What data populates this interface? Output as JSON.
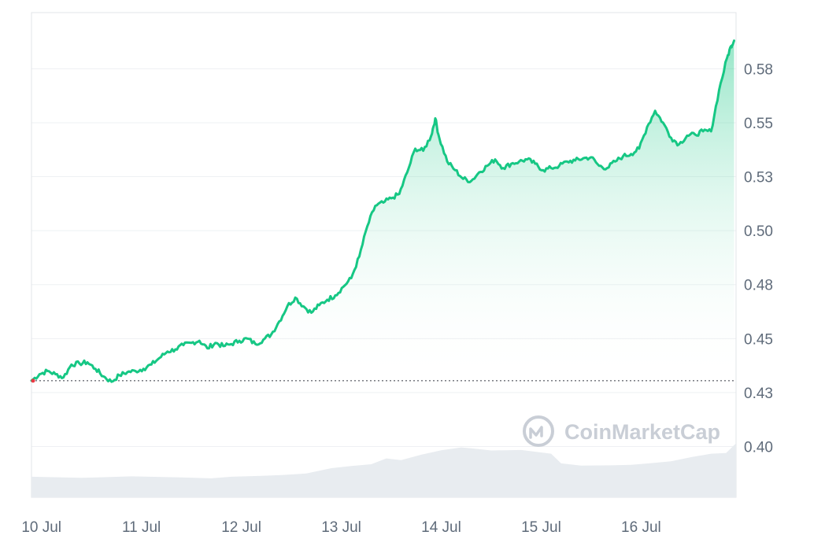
{
  "watermark": {
    "text": "CoinMarketCap",
    "icon": "coinmarketcap-logo-icon"
  },
  "colors": {
    "price_line": "#16c784",
    "area_top": "#16c784",
    "area_bottom": "#ffffff",
    "volume": "#e8ecf0",
    "grid": "#eef0f3",
    "frame": "#e1e4e8",
    "baseline": "#6b6f75",
    "open_marker": "#ea3943",
    "tick_text": "#5f6b7a",
    "watermark": "#c9ced6"
  },
  "chart_data": {
    "type": "area",
    "title": "",
    "xlabel": "",
    "ylabel": "",
    "y_axis_position": "right",
    "y_ticks": [
      "0.40",
      "0.43",
      "0.45",
      "0.48",
      "0.50",
      "0.53",
      "0.55",
      "0.58"
    ],
    "y_tick_values": [
      0.4,
      0.425,
      0.45,
      0.475,
      0.5,
      0.525,
      0.55,
      0.575
    ],
    "ylim": [
      0.3765,
      0.601
    ],
    "x_ticks": [
      "10 Jul",
      "11 Jul",
      "12 Jul",
      "13 Jul",
      "14 Jul",
      "15 Jul",
      "16 Jul"
    ],
    "x_tick_values": [
      0.1,
      1.1,
      2.1,
      3.1,
      4.1,
      5.1,
      6.1
    ],
    "xlim": [
      0,
      7.05
    ],
    "grid": true,
    "open_price_reference": 0.4305,
    "series": [
      {
        "kind": "price",
        "x": [
          0,
          0.08,
          0.16,
          0.24,
          0.32,
          0.4,
          0.48,
          0.56,
          0.64,
          0.72,
          0.8,
          0.88,
          0.96,
          1.04,
          1.12,
          1.2,
          1.28,
          1.36,
          1.44,
          1.52,
          1.6,
          1.68,
          1.76,
          1.84,
          1.92,
          2.0,
          2.08,
          2.16,
          2.24,
          2.32,
          2.4,
          2.48,
          2.56,
          2.64,
          2.72,
          2.8,
          2.88,
          2.96,
          3.04,
          3.12,
          3.2,
          3.28,
          3.36,
          3.44,
          3.52,
          3.6,
          3.68,
          3.76,
          3.84,
          3.92,
          4.0,
          4.04,
          4.08,
          4.16,
          4.24,
          4.32,
          4.4,
          4.48,
          4.56,
          4.64,
          4.72,
          4.8,
          4.88,
          4.96,
          5.04,
          5.12,
          5.2,
          5.28,
          5.36,
          5.44,
          5.52,
          5.6,
          5.68,
          5.76,
          5.84,
          5.92,
          6.0,
          6.08,
          6.16,
          6.24,
          6.32,
          6.4,
          6.48,
          6.56,
          6.64,
          6.72,
          6.8,
          6.88,
          6.96,
          7.0,
          7.03
        ],
        "y": [
          0.4305,
          0.4335,
          0.435,
          0.4335,
          0.432,
          0.438,
          0.4385,
          0.439,
          0.436,
          0.4325,
          0.43,
          0.433,
          0.4345,
          0.435,
          0.436,
          0.438,
          0.441,
          0.444,
          0.445,
          0.447,
          0.448,
          0.449,
          0.4455,
          0.448,
          0.4465,
          0.4475,
          0.449,
          0.45,
          0.4475,
          0.4495,
          0.452,
          0.458,
          0.465,
          0.469,
          0.465,
          0.462,
          0.4655,
          0.468,
          0.47,
          0.474,
          0.478,
          0.488,
          0.502,
          0.5115,
          0.513,
          0.515,
          0.517,
          0.527,
          0.538,
          0.537,
          0.544,
          0.552,
          0.543,
          0.532,
          0.528,
          0.524,
          0.523,
          0.527,
          0.53,
          0.533,
          0.529,
          0.531,
          0.532,
          0.533,
          0.531,
          0.528,
          0.529,
          0.53,
          0.532,
          0.5325,
          0.5335,
          0.534,
          0.53,
          0.529,
          0.532,
          0.5345,
          0.5355,
          0.538,
          0.548,
          0.5555,
          0.55,
          0.543,
          0.54,
          0.544,
          0.5445,
          0.546,
          0.546,
          0.565,
          0.58,
          0.5855,
          0.588
        ]
      },
      {
        "kind": "volume",
        "x": [
          0,
          0.5,
          1.0,
          1.5,
          1.8,
          2.0,
          2.3,
          2.5,
          2.75,
          3.0,
          3.2,
          3.4,
          3.55,
          3.7,
          3.9,
          4.1,
          4.3,
          4.4,
          4.6,
          4.9,
          5.2,
          5.3,
          5.5,
          5.8,
          6.0,
          6.2,
          6.4,
          6.6,
          6.8,
          6.95,
          7.05
        ],
        "y": [
          0.386,
          0.3855,
          0.3862,
          0.3857,
          0.3853,
          0.386,
          0.3864,
          0.3868,
          0.3875,
          0.39,
          0.391,
          0.3918,
          0.3945,
          0.3937,
          0.3962,
          0.3983,
          0.3996,
          0.3992,
          0.3982,
          0.3984,
          0.3967,
          0.3922,
          0.3912,
          0.3913,
          0.3915,
          0.3923,
          0.3932,
          0.3951,
          0.3967,
          0.397,
          0.4015
        ]
      }
    ]
  }
}
